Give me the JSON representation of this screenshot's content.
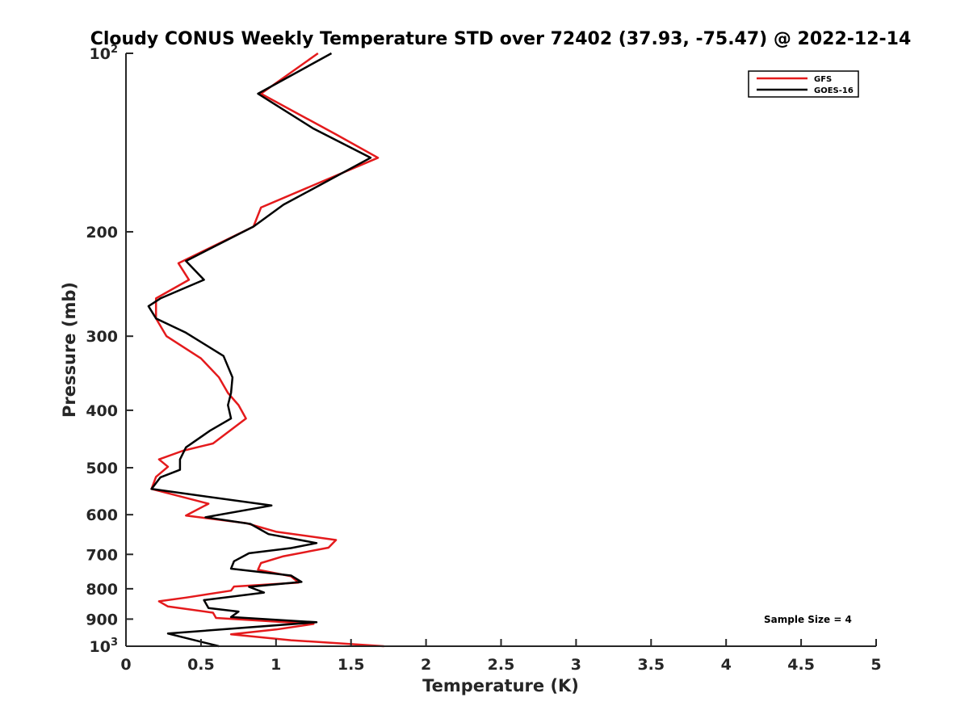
{
  "chart_data": {
    "type": "line",
    "title": "Cloudy CONUS Weekly Temperature STD over 72402 (37.93, -75.47) @ 2022-12-14",
    "xlabel": "Temperature (K)",
    "ylabel": "Pressure (mb)",
    "xlim": [
      0,
      5
    ],
    "ylim": [
      100,
      1000
    ],
    "yscale": "log",
    "y_reversed": true,
    "grid": false,
    "legend_position": "top-right",
    "x_ticks": [
      "0",
      "0.5",
      "1",
      "1.5",
      "2",
      "2.5",
      "3",
      "3.5",
      "4",
      "4.5",
      "5"
    ],
    "y_ticks": [
      {
        "value": 100,
        "base": "10",
        "exp": "2"
      },
      {
        "value": 200,
        "label": "200"
      },
      {
        "value": 300,
        "label": "300"
      },
      {
        "value": 400,
        "label": "400"
      },
      {
        "value": 500,
        "label": "500"
      },
      {
        "value": 600,
        "label": "600"
      },
      {
        "value": 700,
        "label": "700"
      },
      {
        "value": 800,
        "label": "800"
      },
      {
        "value": 900,
        "label": "900"
      },
      {
        "value": 1000,
        "base": "10",
        "exp": "3"
      }
    ],
    "annotation": "Sample Size = 4",
    "series": [
      {
        "name": "GFS",
        "color": "#e41a1c",
        "points": [
          [
            1.28,
            100
          ],
          [
            0.9,
            117
          ],
          [
            1.4,
            137
          ],
          [
            1.68,
            150
          ],
          [
            0.9,
            182
          ],
          [
            0.85,
            196
          ],
          [
            0.35,
            226
          ],
          [
            0.42,
            241
          ],
          [
            0.2,
            259
          ],
          [
            0.2,
            280
          ],
          [
            0.27,
            300
          ],
          [
            0.5,
            327
          ],
          [
            0.62,
            352
          ],
          [
            0.68,
            374
          ],
          [
            0.75,
            392
          ],
          [
            0.8,
            413
          ],
          [
            0.58,
            455
          ],
          [
            0.38,
            468
          ],
          [
            0.22,
            484
          ],
          [
            0.28,
            498
          ],
          [
            0.2,
            518
          ],
          [
            0.17,
            543
          ],
          [
            0.55,
            575
          ],
          [
            0.4,
            602
          ],
          [
            0.8,
            620
          ],
          [
            1.0,
            641
          ],
          [
            1.4,
            662
          ],
          [
            1.35,
            682
          ],
          [
            1.05,
            705
          ],
          [
            0.9,
            724
          ],
          [
            0.88,
            743
          ],
          [
            1.1,
            762
          ],
          [
            1.15,
            781
          ],
          [
            0.72,
            793
          ],
          [
            0.7,
            806
          ],
          [
            0.4,
            828
          ],
          [
            0.22,
            840
          ],
          [
            0.28,
            857
          ],
          [
            0.58,
            878
          ],
          [
            0.6,
            896
          ],
          [
            1.25,
            917
          ],
          [
            1.0,
            937
          ],
          [
            0.7,
            955
          ],
          [
            1.1,
            977
          ],
          [
            1.72,
            1000
          ]
        ]
      },
      {
        "name": "GOES-16",
        "color": "#000000",
        "points": [
          [
            1.37,
            100
          ],
          [
            0.88,
            117
          ],
          [
            1.25,
            134
          ],
          [
            1.63,
            150
          ],
          [
            1.05,
            180
          ],
          [
            0.85,
            196
          ],
          [
            0.4,
            224
          ],
          [
            0.52,
            241
          ],
          [
            0.23,
            259
          ],
          [
            0.15,
            267
          ],
          [
            0.2,
            280
          ],
          [
            0.4,
            296
          ],
          [
            0.65,
            324
          ],
          [
            0.71,
            352
          ],
          [
            0.7,
            374
          ],
          [
            0.68,
            392
          ],
          [
            0.7,
            413
          ],
          [
            0.56,
            433
          ],
          [
            0.4,
            462
          ],
          [
            0.36,
            484
          ],
          [
            0.36,
            504
          ],
          [
            0.23,
            519
          ],
          [
            0.17,
            543
          ],
          [
            0.97,
            579
          ],
          [
            0.53,
            606
          ],
          [
            0.83,
            622
          ],
          [
            0.95,
            647
          ],
          [
            1.27,
            670
          ],
          [
            1.1,
            683
          ],
          [
            0.82,
            697
          ],
          [
            0.72,
            719
          ],
          [
            0.7,
            740
          ],
          [
            1.1,
            760
          ],
          [
            1.17,
            779
          ],
          [
            0.82,
            794
          ],
          [
            0.92,
            812
          ],
          [
            0.52,
            836
          ],
          [
            0.55,
            862
          ],
          [
            0.75,
            874
          ],
          [
            0.7,
            893
          ],
          [
            1.27,
            911
          ],
          [
            0.28,
            952
          ],
          [
            0.62,
            1000
          ]
        ]
      }
    ]
  }
}
